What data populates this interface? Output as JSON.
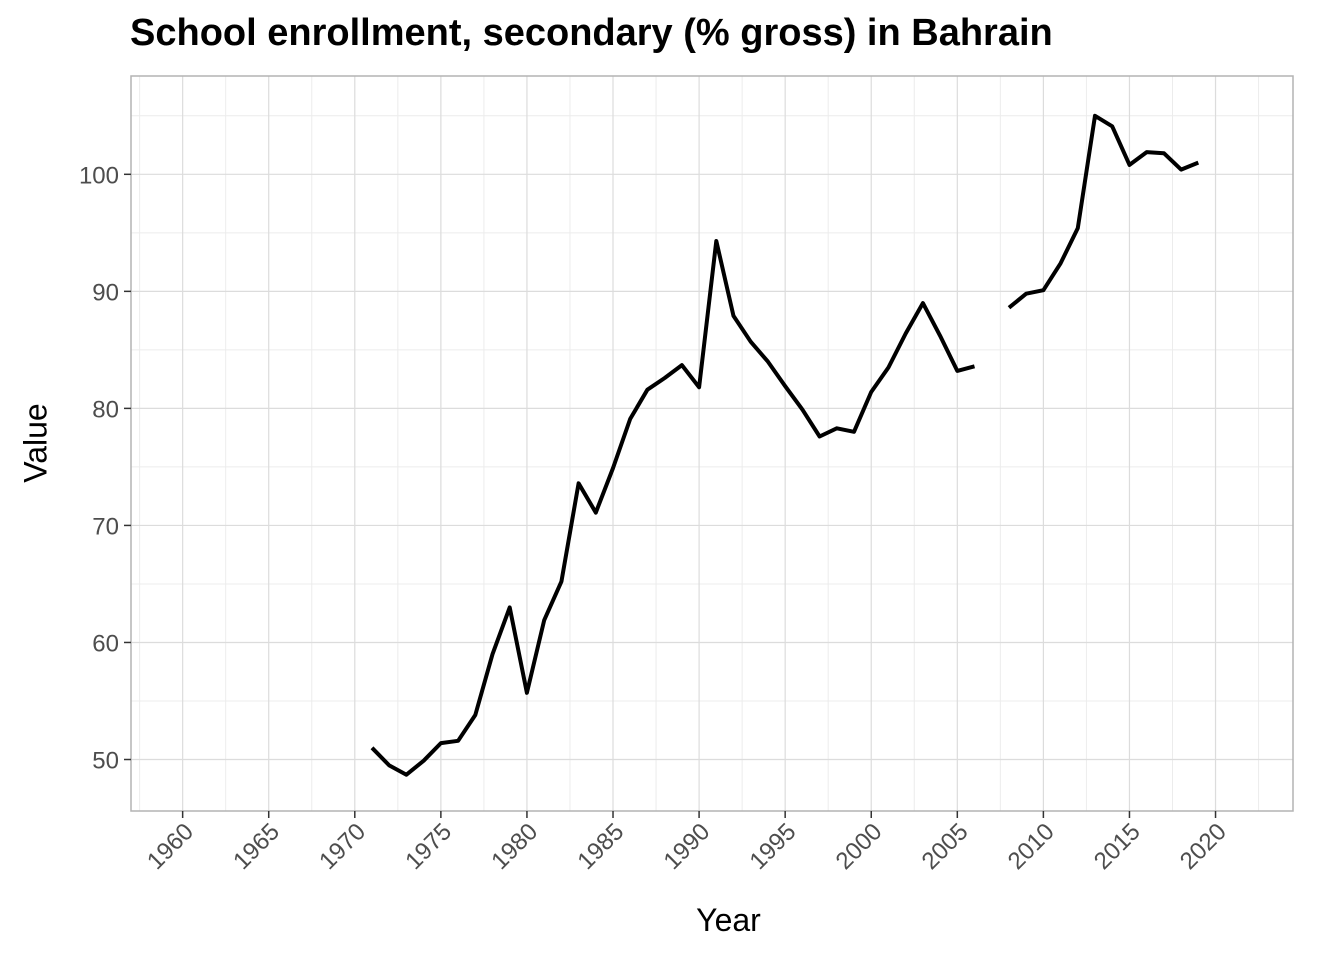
{
  "chart_data": {
    "type": "line",
    "title": "School enrollment, secondary (% gross) in Bahrain",
    "xlabel": "Year",
    "ylabel": "Value",
    "xlim": [
      1957,
      2024.5
    ],
    "ylim": [
      45.6,
      108.4
    ],
    "x_ticks": [
      1960,
      1965,
      1970,
      1975,
      1980,
      1985,
      1990,
      1995,
      2000,
      2005,
      2010,
      2015,
      2020
    ],
    "y_ticks": [
      50,
      60,
      70,
      80,
      90,
      100
    ],
    "grid": true,
    "series": [
      {
        "x": [
          1971,
          1972,
          1973,
          1974,
          1975,
          1976,
          1977,
          1978,
          1979,
          1980,
          1981,
          1982,
          1983,
          1984,
          1985,
          1986,
          1987,
          1988,
          1989,
          1990,
          1991,
          1992,
          1993,
          1994,
          1995,
          1996,
          1997,
          1998,
          1999,
          2000,
          2001,
          2002,
          2003,
          2004,
          2005,
          2006,
          2007,
          2008,
          2009,
          2010,
          2011,
          2012,
          2013,
          2014,
          2015,
          2016,
          2017,
          2018,
          2019
        ],
        "y": [
          51.0,
          49.5,
          48.7,
          49.9,
          51.4,
          51.6,
          53.8,
          59.0,
          63.0,
          55.7,
          61.9,
          65.2,
          73.6,
          71.1,
          74.9,
          79.1,
          81.6,
          82.6,
          83.7,
          81.8,
          94.3,
          87.9,
          85.7,
          84.0,
          81.9,
          79.9,
          77.6,
          78.3,
          78.0,
          81.4,
          83.5,
          86.4,
          89.0,
          86.2,
          83.2,
          83.6,
          null,
          88.6,
          89.8,
          90.1,
          92.4,
          95.4,
          105.0,
          104.1,
          100.8,
          101.9,
          101.8,
          100.4,
          101.0
        ]
      }
    ],
    "colors": {
      "line": "#000000",
      "grid_major": "#dcdcdc",
      "grid_minor": "#ececec",
      "panel_border": "#b3b3b3",
      "tick_text": "#4d4d4d"
    }
  }
}
